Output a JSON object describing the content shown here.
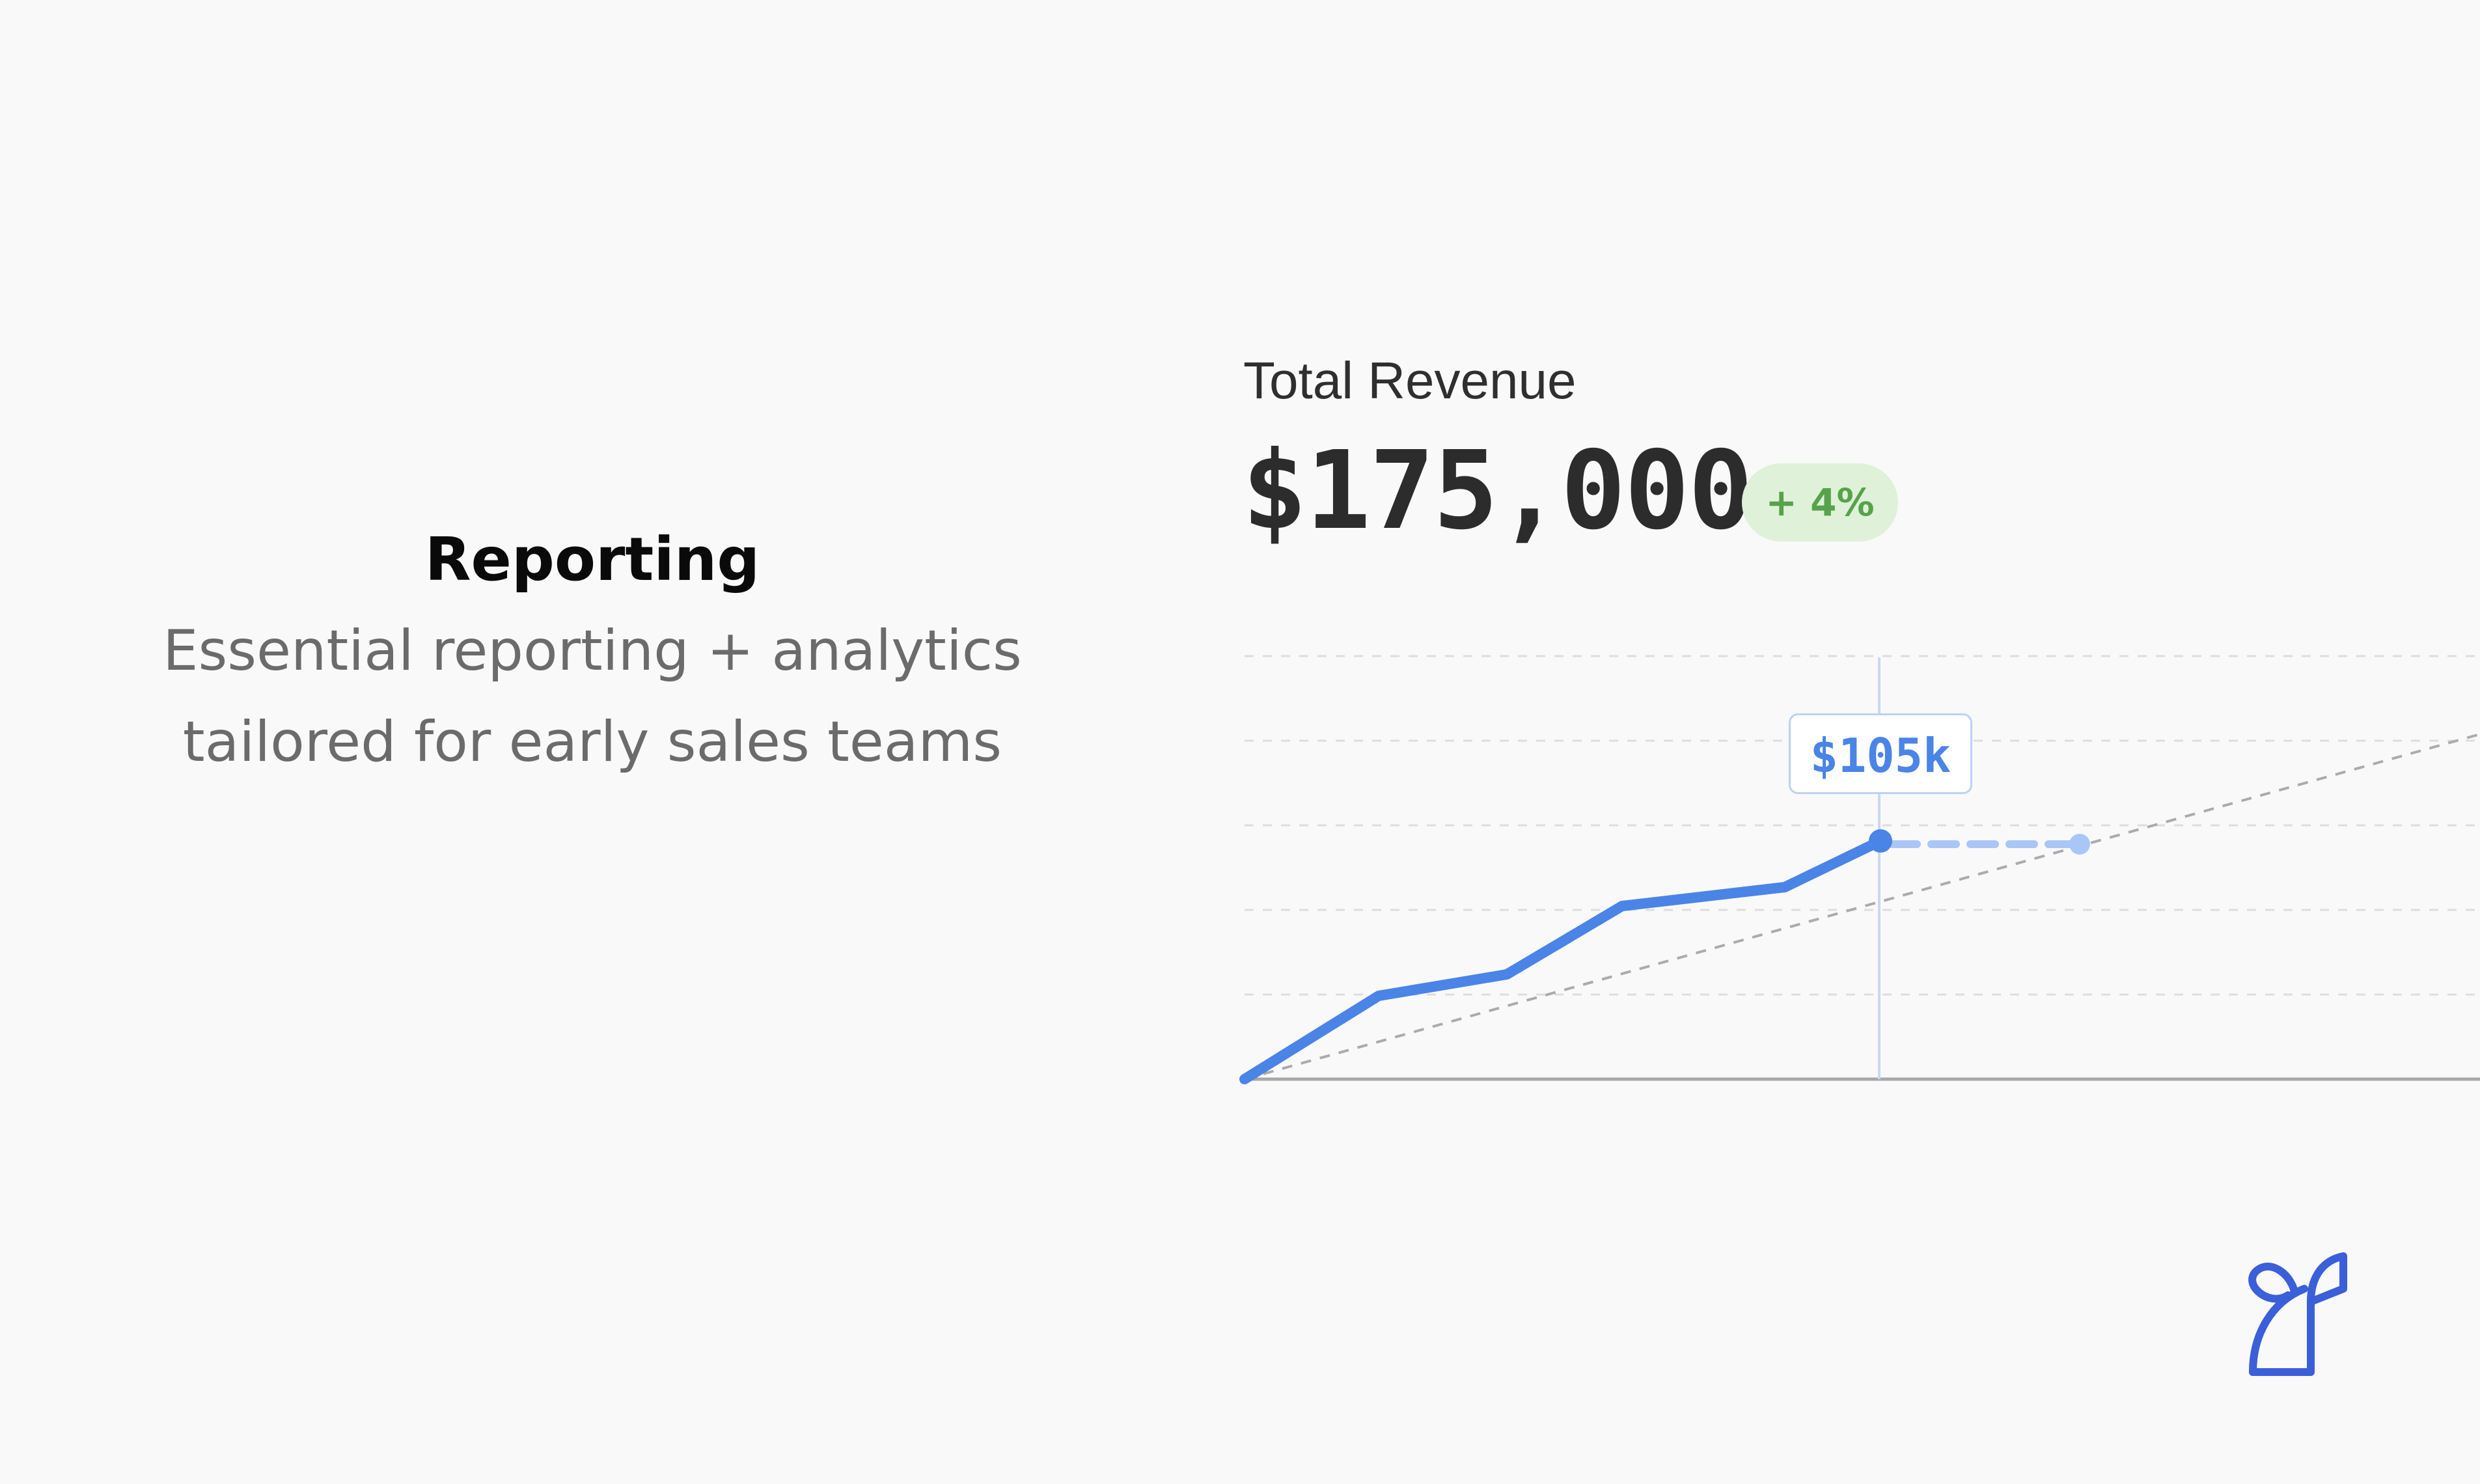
{
  "promo": {
    "title": "Reporting",
    "subtitle_line1": "Essential reporting + analytics",
    "subtitle_line2": "tailored for early sales teams"
  },
  "metric": {
    "label": "Total Revenue",
    "value": "$175,000",
    "change": "+ 4%",
    "change_color": "#57a24a"
  },
  "chart_data": {
    "type": "line",
    "title": "",
    "xlabel": "",
    "ylabel": "",
    "x": [
      0,
      1,
      2,
      3,
      4,
      5
    ],
    "ylim": [
      0,
      150
    ],
    "grid": true,
    "series": [
      {
        "values": [
          0,
          40,
          50,
          83,
          90,
          112
        ],
        "color": "#4a84e6"
      }
    ],
    "projection": {
      "from_x": 5,
      "to_x": 6.8,
      "value": 112,
      "color": "#a9c6f6"
    },
    "trend": {
      "from": [
        0,
        0
      ],
      "to": [
        10.5,
        162
      ],
      "color": "#ababab"
    },
    "callout": {
      "x": 5,
      "label": "$105k"
    }
  },
  "brand": {
    "icon": "sprout-logo-icon",
    "color": "#3a5fd9"
  }
}
